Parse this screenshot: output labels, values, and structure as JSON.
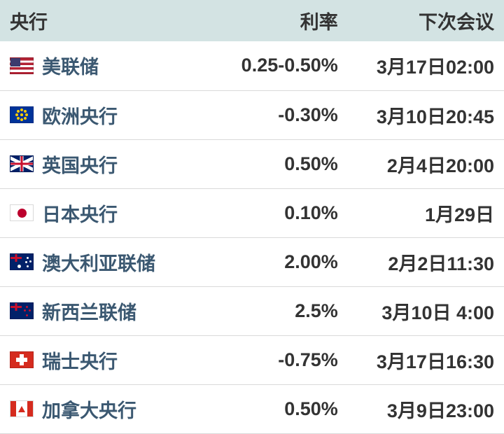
{
  "table": {
    "columns": {
      "bank": "央行",
      "rate": "利率",
      "meeting": "下次会议"
    },
    "header_bg": "#d3e3e3",
    "text_color": "#333333",
    "link_color": "#3b5871",
    "border_color": "#d9d9d9",
    "font_size_pt": 20,
    "rows": [
      {
        "flag": "us",
        "bank": "美联储",
        "rate": "0.25-0.50%",
        "meeting": "3月17日02:00"
      },
      {
        "flag": "eu",
        "bank": "欧洲央行",
        "rate": "-0.30%",
        "meeting": "3月10日20:45"
      },
      {
        "flag": "uk",
        "bank": "英国央行",
        "rate": "0.50%",
        "meeting": "2月4日20:00"
      },
      {
        "flag": "jp",
        "bank": "日本央行",
        "rate": "0.10%",
        "meeting": "1月29日"
      },
      {
        "flag": "au",
        "bank": "澳大利亚联储",
        "rate": "2.00%",
        "meeting": "2月2日11:30"
      },
      {
        "flag": "nz",
        "bank": "新西兰联储",
        "rate": "2.5%",
        "meeting": "3月10日 4:00"
      },
      {
        "flag": "ch",
        "bank": "瑞士央行",
        "rate": "-0.75%",
        "meeting": "3月17日16:30"
      },
      {
        "flag": "ca",
        "bank": "加拿大央行",
        "rate": "0.50%",
        "meeting": "3月9日23:00"
      }
    ]
  }
}
